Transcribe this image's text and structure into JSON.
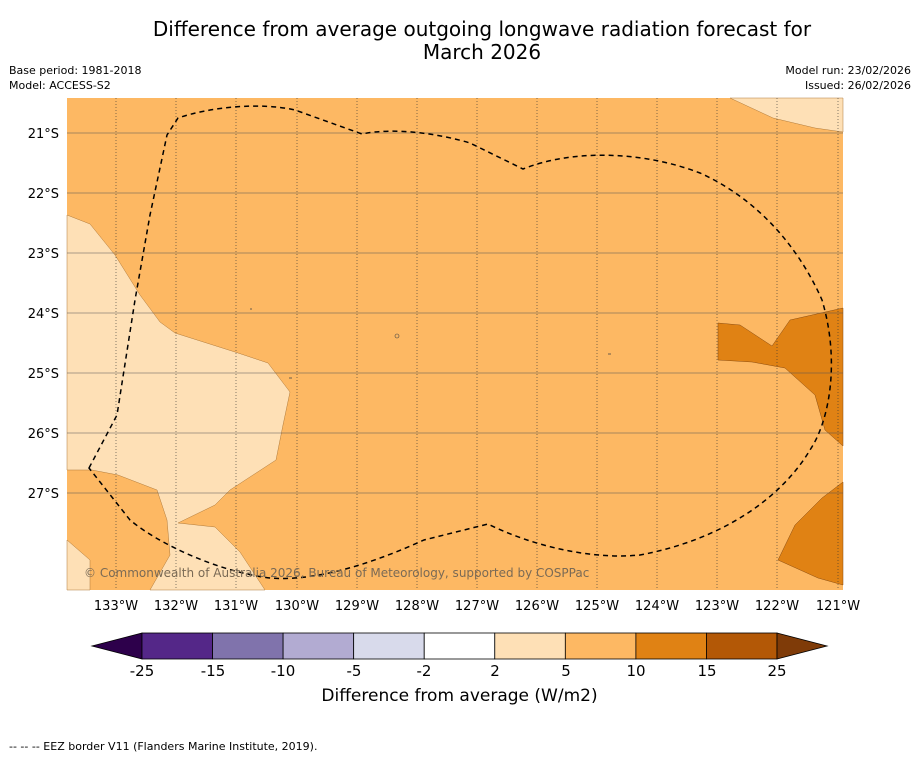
{
  "title_line1": "Difference from average outgoing longwave radiation forecast for",
  "title_line2": "March 2026",
  "base_period": "Base period: 1981-2018",
  "model": "Model: ACCESS-S2",
  "model_run": "Model run: 23/02/2026",
  "issued": "Issued: 26/02/2026",
  "copyright": "© Commonwealth of Australia 2026, Bureau of Meteorology, supported by COSPPac",
  "legend_title": "Difference from average (W/m2)",
  "footnote": "--  --  -- EEZ border V11 (Flanders Marine Institute, 2019).",
  "lat_labels": [
    "21°S",
    "22°S",
    "23°S",
    "24°S",
    "25°S",
    "26°S",
    "27°S"
  ],
  "lon_labels": [
    "133°W",
    "132°W",
    "131°W",
    "130°W",
    "129°W",
    "128°W",
    "127°W",
    "126°W",
    "125°W",
    "124°W",
    "123°W",
    "122°W",
    "121°W"
  ],
  "legend_ticks": [
    "-25",
    "-15",
    "-10",
    "-5",
    "-2",
    "2",
    "5",
    "10",
    "15",
    "25"
  ],
  "colors": {
    "under": "#2d004b",
    "bins": [
      "#542788",
      "#8073ac",
      "#b2abd2",
      "#d8daeb",
      "#ffffff",
      "#fee0b6",
      "#fdb863",
      "#e08214",
      "#b35806"
    ],
    "over": "#7f3b08"
  }
}
